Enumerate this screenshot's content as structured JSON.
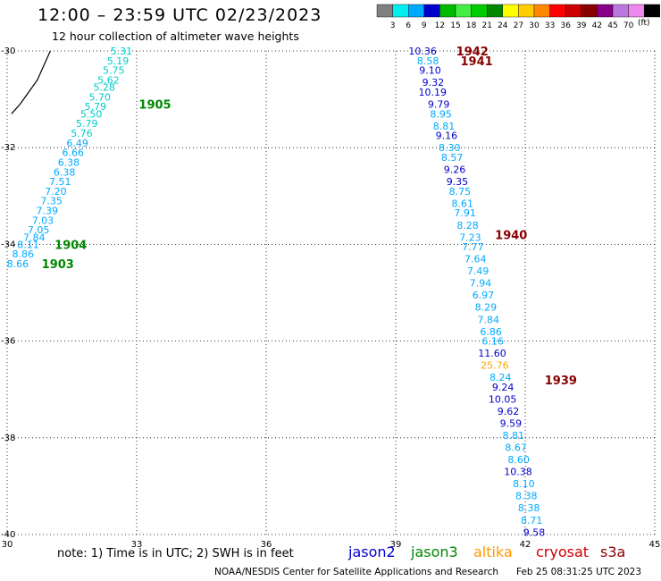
{
  "title": "12:00 – 23:59 UTC 02/23/2023",
  "subtitle": "12 hour collection of altimeter wave heights",
  "note": "note: 1) Time is in UTC; 2) SWH is in feet",
  "credit": "NOAA/NESDIS Center for Satellite Applications and Research",
  "timestamp": "Feb 25 08:31:25 UTC 2023",
  "colorbar": {
    "unit": "(ft)",
    "labels": [
      "3",
      "6",
      "9",
      "12",
      "15",
      "18",
      "21",
      "24",
      "27",
      "30",
      "33",
      "36",
      "39",
      "42",
      "45",
      "70"
    ],
    "colors": [
      "#808080",
      "#00eeee",
      "#00aaff",
      "#0000cc",
      "#00bb00",
      "#44ee44",
      "#00cc00",
      "#008800",
      "#ffff00",
      "#ffcc00",
      "#ff8800",
      "#ff0000",
      "#cc0000",
      "#880000",
      "#880088",
      "#bb77dd",
      "#ee88ee",
      "#000000"
    ]
  },
  "satellites": [
    {
      "name": "jason2",
      "color": "#0000cc"
    },
    {
      "name": "jason3",
      "color": "#008800"
    },
    {
      "name": "altika",
      "color": "#ff9900"
    },
    {
      "name": "cryosat",
      "color": "#cc0000"
    },
    {
      "name": "s3a",
      "color": "#880000"
    }
  ],
  "chart_data": {
    "type": "scatter",
    "xlim": [
      30,
      45
    ],
    "ylim": [
      -40,
      -30
    ],
    "xticks": [
      "30",
      "33",
      "36",
      "39",
      "42",
      "45"
    ],
    "yticks": [
      "-30",
      "-32",
      "-34",
      "-36",
      "-38",
      "-40"
    ],
    "grid": true,
    "time_labels": [
      {
        "text": "1905",
        "x": 33.05,
        "y": -31.1,
        "color": "#008800"
      },
      {
        "text": "1904",
        "x": 31.1,
        "y": -34.0,
        "color": "#008800"
      },
      {
        "text": "1903",
        "x": 30.8,
        "y": -34.4,
        "color": "#008800"
      },
      {
        "text": "1942",
        "x": 40.4,
        "y": -30.0,
        "color": "#880000"
      },
      {
        "text": "1941",
        "x": 40.5,
        "y": -30.2,
        "color": "#880000"
      },
      {
        "text": "1940",
        "x": 41.3,
        "y": -33.8,
        "color": "#880000"
      },
      {
        "text": "1939",
        "x": 42.45,
        "y": -36.8,
        "color": "#880000"
      }
    ],
    "track_jason3": [
      {
        "v": "5.31",
        "x": 32.9,
        "y": -30.0,
        "c": "#00cccc"
      },
      {
        "v": "5.19",
        "x": 32.82,
        "y": -30.2,
        "c": "#00cccc"
      },
      {
        "v": "5.75",
        "x": 32.72,
        "y": -30.4,
        "c": "#00cccc"
      },
      {
        "v": "5.62",
        "x": 32.6,
        "y": -30.6,
        "c": "#00cccc"
      },
      {
        "v": "5.28",
        "x": 32.5,
        "y": -30.75,
        "c": "#00cccc"
      },
      {
        "v": "5.70",
        "x": 32.4,
        "y": -30.95,
        "c": "#00cccc"
      },
      {
        "v": "5.79",
        "x": 32.3,
        "y": -31.15,
        "c": "#00cccc"
      },
      {
        "v": "5.50",
        "x": 32.2,
        "y": -31.3,
        "c": "#00cccc"
      },
      {
        "v": "5.79",
        "x": 32.1,
        "y": -31.5,
        "c": "#00cccc"
      },
      {
        "v": "5.76",
        "x": 31.98,
        "y": -31.7,
        "c": "#00cccc"
      },
      {
        "v": "6.49",
        "x": 31.88,
        "y": -31.9,
        "c": "#00aaff"
      },
      {
        "v": "6.66",
        "x": 31.78,
        "y": -32.1,
        "c": "#00aaff"
      },
      {
        "v": "6.38",
        "x": 31.68,
        "y": -32.3,
        "c": "#00aaff"
      },
      {
        "v": "6.38",
        "x": 31.58,
        "y": -32.5,
        "c": "#00aaff"
      },
      {
        "v": "7.51",
        "x": 31.48,
        "y": -32.7,
        "c": "#00aaff"
      },
      {
        "v": "7.20",
        "x": 31.38,
        "y": -32.9,
        "c": "#00aaff"
      },
      {
        "v": "7.35",
        "x": 31.28,
        "y": -33.1,
        "c": "#00aaff"
      },
      {
        "v": "7.39",
        "x": 31.18,
        "y": -33.3,
        "c": "#00aaff"
      },
      {
        "v": "7.03",
        "x": 31.08,
        "y": -33.5,
        "c": "#00aaff"
      },
      {
        "v": "7.05",
        "x": 30.98,
        "y": -33.7,
        "c": "#00aaff"
      },
      {
        "v": "7.84",
        "x": 30.88,
        "y": -33.85,
        "c": "#00aaff"
      },
      {
        "v": "8.11",
        "x": 30.74,
        "y": -34.0,
        "c": "#00aaff"
      },
      {
        "v": "8.86",
        "x": 30.62,
        "y": -34.2,
        "c": "#00aaff"
      },
      {
        "v": "8.66",
        "x": 30.5,
        "y": -34.4,
        "c": "#00aaff"
      }
    ],
    "track_cryosat": [
      {
        "v": "10.36",
        "x": 39.95,
        "y": -30.0,
        "c": "#0000cc"
      },
      {
        "v": "8.58",
        "x": 40.0,
        "y": -30.2,
        "c": "#00aaff"
      },
      {
        "v": "9.10",
        "x": 40.05,
        "y": -30.4,
        "c": "#0000cc"
      },
      {
        "v": "9.32",
        "x": 40.12,
        "y": -30.65,
        "c": "#0000cc"
      },
      {
        "v": "10.19",
        "x": 40.18,
        "y": -30.85,
        "c": "#0000cc"
      },
      {
        "v": "9.79",
        "x": 40.25,
        "y": -31.1,
        "c": "#0000cc"
      },
      {
        "v": "8.95",
        "x": 40.3,
        "y": -31.3,
        "c": "#00aaff"
      },
      {
        "v": "8.81",
        "x": 40.37,
        "y": -31.55,
        "c": "#00aaff"
      },
      {
        "v": "9.16",
        "x": 40.43,
        "y": -31.75,
        "c": "#0000cc"
      },
      {
        "v": "8.30",
        "x": 40.5,
        "y": -32.0,
        "c": "#00aaff"
      },
      {
        "v": "8.57",
        "x": 40.56,
        "y": -32.2,
        "c": "#00aaff"
      },
      {
        "v": "9.26",
        "x": 40.62,
        "y": -32.45,
        "c": "#0000cc"
      },
      {
        "v": "9.35",
        "x": 40.68,
        "y": -32.7,
        "c": "#0000cc"
      },
      {
        "v": "8.75",
        "x": 40.74,
        "y": -32.9,
        "c": "#00aaff"
      },
      {
        "v": "8.61",
        "x": 40.8,
        "y": -33.15,
        "c": "#00aaff"
      },
      {
        "v": "7.91",
        "x": 40.86,
        "y": -33.35,
        "c": "#00aaff"
      },
      {
        "v": "8.28",
        "x": 40.92,
        "y": -33.6,
        "c": "#00aaff"
      },
      {
        "v": "7.23",
        "x": 40.98,
        "y": -33.85,
        "c": "#00aaff"
      },
      {
        "v": "7.77",
        "x": 41.04,
        "y": -34.05,
        "c": "#00aaff"
      },
      {
        "v": "7.64",
        "x": 41.1,
        "y": -34.3,
        "c": "#00aaff"
      },
      {
        "v": "7.49",
        "x": 41.16,
        "y": -34.55,
        "c": "#00aaff"
      },
      {
        "v": "7.94",
        "x": 41.22,
        "y": -34.8,
        "c": "#00aaff"
      },
      {
        "v": "6.97",
        "x": 41.28,
        "y": -35.05,
        "c": "#00aaff"
      },
      {
        "v": "8.29",
        "x": 41.34,
        "y": -35.3,
        "c": "#00aaff"
      },
      {
        "v": "7.84",
        "x": 41.4,
        "y": -35.55,
        "c": "#00aaff"
      },
      {
        "v": "6.86",
        "x": 41.46,
        "y": -35.8,
        "c": "#00aaff"
      },
      {
        "v": "6.16",
        "x": 41.5,
        "y": -36.0,
        "c": "#00aaff"
      },
      {
        "v": "11.60",
        "x": 41.56,
        "y": -36.25,
        "c": "#0000cc"
      },
      {
        "v": "25.76",
        "x": 41.62,
        "y": -36.5,
        "c": "#ffaa00"
      },
      {
        "v": "8.24",
        "x": 41.68,
        "y": -36.75,
        "c": "#00aaff"
      },
      {
        "v": "9.24",
        "x": 41.74,
        "y": -36.95,
        "c": "#0000cc"
      },
      {
        "v": "10.05",
        "x": 41.8,
        "y": -37.2,
        "c": "#0000cc"
      },
      {
        "v": "9.62",
        "x": 41.86,
        "y": -37.45,
        "c": "#0000cc"
      },
      {
        "v": "9.59",
        "x": 41.92,
        "y": -37.7,
        "c": "#0000cc"
      },
      {
        "v": "8.81",
        "x": 41.98,
        "y": -37.95,
        "c": "#00aaff"
      },
      {
        "v": "8.67",
        "x": 42.04,
        "y": -38.2,
        "c": "#00aaff"
      },
      {
        "v": "8.60",
        "x": 42.1,
        "y": -38.45,
        "c": "#00aaff"
      },
      {
        "v": "10.38",
        "x": 42.16,
        "y": -38.7,
        "c": "#0000cc"
      },
      {
        "v": "8.10",
        "x": 42.22,
        "y": -38.95,
        "c": "#00aaff"
      },
      {
        "v": "8.38",
        "x": 42.28,
        "y": -39.2,
        "c": "#00aaff"
      },
      {
        "v": "8.38",
        "x": 42.34,
        "y": -39.45,
        "c": "#00aaff"
      },
      {
        "v": "8.71",
        "x": 42.4,
        "y": -39.7,
        "c": "#00aaff"
      },
      {
        "v": "9.58",
        "x": 42.46,
        "y": -39.95,
        "c": "#0000cc"
      }
    ],
    "coastline": [
      [
        30.1,
        -31.3
      ],
      [
        30.3,
        -31.1
      ],
      [
        30.5,
        -30.85
      ],
      [
        30.7,
        -30.6
      ],
      [
        30.8,
        -30.4
      ],
      [
        30.9,
        -30.2
      ],
      [
        31.0,
        -30.0
      ]
    ]
  }
}
